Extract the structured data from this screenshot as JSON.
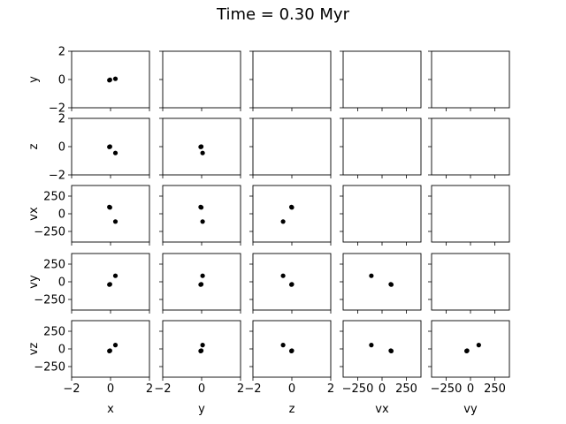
{
  "title": "Time = 0.30 Myr",
  "chart_data": {
    "type": "scatter",
    "title": "Time = 0.30 Myr",
    "variables": [
      "x",
      "y",
      "z",
      "vx",
      "vy",
      "vz"
    ],
    "limits": {
      "x": [
        -2,
        2
      ],
      "y": [
        -2,
        2
      ],
      "z": [
        -2,
        2
      ],
      "vx": [
        -400,
        400
      ],
      "vy": [
        -400,
        400
      ],
      "vz": [
        -400,
        400
      ]
    },
    "ticks": {
      "x": [
        -2,
        0,
        2
      ],
      "y": [
        -2,
        0,
        2
      ],
      "z": [
        -2,
        0,
        2
      ],
      "vx": [
        -250,
        0,
        250
      ],
      "vy": [
        -250,
        0,
        250
      ],
      "vz": [
        -250,
        0,
        250
      ]
    },
    "tick_labels": {
      "x": [
        "−2",
        "0",
        "2"
      ],
      "y": [
        "−2",
        "0",
        "2"
      ],
      "z": [
        "−2",
        "0",
        "2"
      ],
      "vx": [
        "−250",
        "0",
        "250"
      ],
      "vy": [
        "−250",
        "0",
        "250"
      ],
      "vz": [
        "−250",
        "0",
        "250"
      ]
    },
    "grid": false,
    "marker_color": "#000000",
    "points": [
      {
        "x": -0.03,
        "y": -0.02,
        "z": 0.0,
        "vx": 90,
        "vy": -35,
        "vz": -25
      },
      {
        "x": -0.06,
        "y": -0.05,
        "z": -0.02,
        "vx": 95,
        "vy": -40,
        "vz": -30
      },
      {
        "x": 0.25,
        "y": 0.05,
        "z": -0.45,
        "vx": -110,
        "vy": 85,
        "vz": 55
      }
    ]
  }
}
